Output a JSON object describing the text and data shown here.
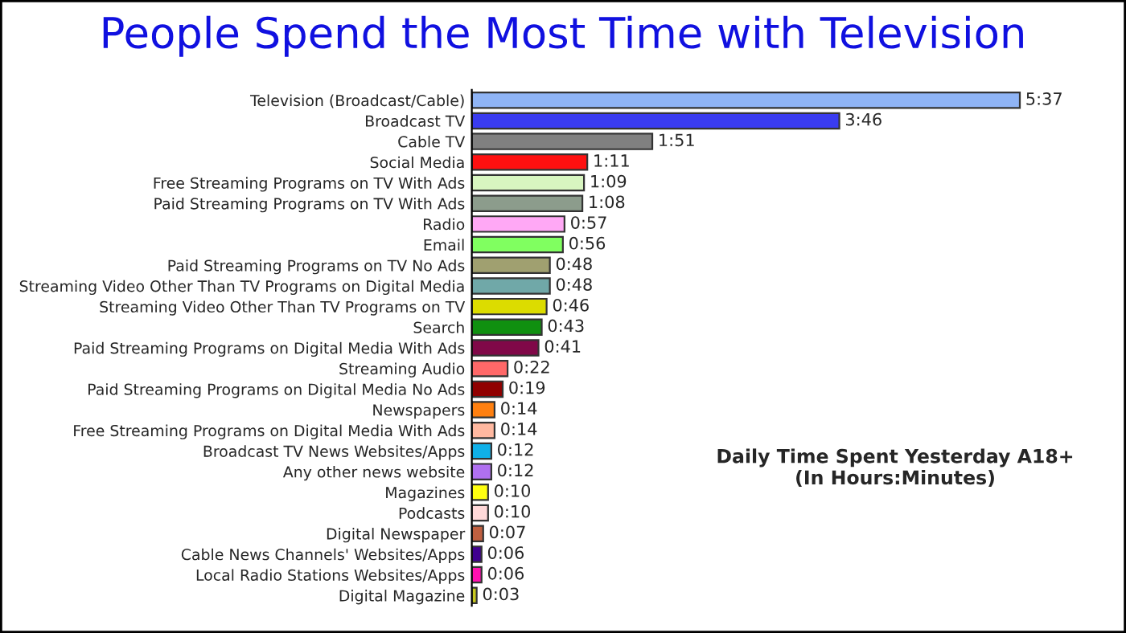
{
  "chart_data": {
    "type": "bar",
    "orientation": "horizontal",
    "title": "People Spend the Most Time with Television",
    "categories": [
      "Television (Broadcast/Cable)",
      "Broadcast TV",
      "Cable TV",
      "Social Media",
      "Free Streaming Programs on TV With Ads",
      "Paid Streaming Programs on TV With Ads",
      "Radio",
      "Email",
      "Paid Streaming Programs on TV No Ads",
      "Streaming Video Other Than TV Programs on Digital Media",
      "Streaming Video Other Than TV Programs on TV",
      "Search",
      "Paid Streaming Programs on Digital Media With Ads",
      "Streaming Audio",
      "Paid Streaming Programs on Digital Media No Ads",
      "Newspapers",
      "Free Streaming Programs on Digital Media With Ads",
      "Broadcast TV News Websites/Apps",
      "Any other news website",
      "Magazines",
      "Podcasts",
      "Digital Newspaper",
      "Cable News Channels' Websites/Apps",
      "Local Radio Stations Websites/Apps",
      "Digital Magazine"
    ],
    "values": [
      337,
      226,
      111,
      71,
      69,
      68,
      57,
      56,
      48,
      48,
      46,
      43,
      41,
      22,
      19,
      14,
      14,
      12,
      12,
      10,
      10,
      7,
      6,
      6,
      3
    ],
    "value_labels": [
      "5:37",
      "3:46",
      "1:51",
      "1:11",
      "1:09",
      "1:08",
      "0:57",
      "0:56",
      "0:48",
      "0:48",
      "0:46",
      "0:43",
      "0:41",
      "0:22",
      "0:19",
      "0:14",
      "0:14",
      "0:12",
      "0:12",
      "0:10",
      "0:10",
      "0:07",
      "0:06",
      "0:06",
      "0:03"
    ],
    "colors": [
      "#8fb4f5",
      "#3a3cf0",
      "#808080",
      "#ff1010",
      "#d8f5c0",
      "#8c9c8c",
      "#ffa8f5",
      "#80ff60",
      "#a0a070",
      "#70a8a8",
      "#dcdc00",
      "#109010",
      "#800848",
      "#ff6868",
      "#900000",
      "#ff8010",
      "#ffb8a0",
      "#10b0e8",
      "#b070f0",
      "#ffff10",
      "#ffd8d8",
      "#c06040",
      "#400090",
      "#ff10b0",
      "#c8c820"
    ],
    "annotations": [
      "Daily Time Spent Yesterday A18+\n(In Hours:Minutes)"
    ],
    "grid": false,
    "legend": false
  }
}
